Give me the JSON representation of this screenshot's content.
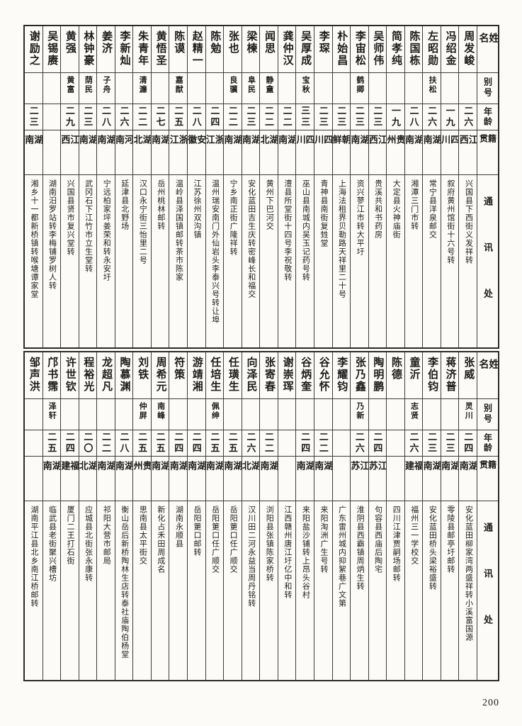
{
  "page_number": "200",
  "headers": {
    "name": "姓名",
    "alias": "别号",
    "age": "年龄",
    "native": "籍贯",
    "address": "通讯处"
  },
  "table_top": {
    "entries": [
      {
        "name": "周发峻",
        "alias": "",
        "age": "二六",
        "native": "江西",
        "address": "兴国县下西街义发祥转"
      },
      {
        "name": "冯绍金",
        "alias": "",
        "age": "一九",
        "native": "四川",
        "address": "叙府黄州馆街十六号转"
      },
      {
        "name": "左昭勋",
        "alias": "扶松",
        "age": "二六",
        "native": "湖南",
        "address": "常宁县洋泉邮交"
      },
      {
        "name": "陈国栋",
        "alias": "",
        "age": "二八",
        "native": "湖南",
        "address": "湘潭三门市转"
      },
      {
        "name": "简孝纯",
        "alias": "",
        "age": "一九",
        "native": "贵州",
        "address": "大定县火神庙街"
      },
      {
        "name": "吴师伟",
        "alias": "",
        "age": "二三",
        "native": "江西",
        "address": "贵溪共和书药房"
      },
      {
        "name": "李宙松",
        "alias": "鹤卿",
        "age": "二三",
        "native": "湖南",
        "address": "资兴蓼江市转大平圩"
      },
      {
        "name": "朴始昌",
        "alias": "",
        "age": "二三",
        "native": "朝鲜",
        "address": "上海法租界贝勒路天祥里二十号"
      },
      {
        "name": "李琛",
        "alias": "",
        "age": "二三",
        "native": "四川",
        "address": "青神县南街复甡堂"
      },
      {
        "name": "吴厚成",
        "alias": "宝秋",
        "age": "三三",
        "native": "四川",
        "address": "巫山县南城内吴玉记药号转"
      },
      {
        "name": "龚仲汉",
        "alias": "",
        "age": "二二",
        "native": "湖南",
        "address": "澧县所堂街十四号李祝敬转"
      },
      {
        "name": "闻思",
        "alias": "静盦",
        "age": "二二",
        "native": "湖北",
        "address": "黄州下巴河交"
      },
      {
        "name": "梁楝",
        "alias": "阜民",
        "age": "二三",
        "native": "湖南",
        "address": "安化蓝田吉生庆转密峰长和福交"
      },
      {
        "name": "张也",
        "alias": "良骥",
        "age": "二二",
        "native": "湖南",
        "address": "宁乡南正街广隆祥转"
      },
      {
        "name": "陈勉",
        "alias": "",
        "age": "二四",
        "native": "浙江",
        "address": "温州瑞安南门外仙岩头李泰兴号转让埠"
      },
      {
        "name": "赵精一",
        "alias": "",
        "age": "二八",
        "native": "安徽",
        "address": "江苏徐州双沟镇"
      },
      {
        "name": "陈谟",
        "alias": "嘉猷",
        "age": "二五",
        "native": "浙江",
        "address": "温岭县泽国镇邮转茶市陈家"
      },
      {
        "name": "黄悟圣",
        "alias": "",
        "age": "二七",
        "native": "湖南",
        "address": "岳州桃林邮转"
      },
      {
        "name": "朱青年",
        "alias": "清濂",
        "age": "二二",
        "native": "湖北",
        "address": "汉口永宁街三怡里二号"
      },
      {
        "name": "李新灿",
        "alias": "",
        "age": "二六",
        "native": "河南",
        "address": "延津县北野场"
      },
      {
        "name": "姜济",
        "alias": "子舟",
        "age": "二八",
        "native": "湖南",
        "address": "宁远柏家坪姜荣和转永安圩"
      },
      {
        "name": "林钟豪",
        "alias": "荫民",
        "age": "二三",
        "native": "湖南",
        "address": "武冈石下江竹市立生堂转"
      },
      {
        "name": "黄强",
        "alias": "黄富",
        "age": "二九",
        "native": "江西",
        "address": "兴国县贤市复兴堂转"
      },
      {
        "name": "吴锡赓",
        "alias": "",
        "age": "",
        "native": "",
        "address": "湖南汨罗站转李梅铺罗树人转"
      },
      {
        "name": "谢励之",
        "alias": "",
        "age": "二三",
        "native": "湖南",
        "address": "湘乡十一都新桥镇转喉塘谭家堂"
      }
    ]
  },
  "table_bottom": {
    "entries": [
      {
        "name": "张威",
        "alias": "灵川",
        "age": "二四",
        "native": "湖南",
        "address": "安化蓝田柳家湾两盛祥转小溪富国源"
      },
      {
        "name": "蒋济普",
        "alias": "",
        "age": "二三",
        "native": "湖南",
        "address": "零陵县邮亭圩邮转"
      },
      {
        "name": "李伯钧",
        "alias": "",
        "age": "二三",
        "native": "湖南",
        "address": "安化蓝田桥头梁裕盛转"
      },
      {
        "name": "童沂",
        "alias": "志贤",
        "age": "二六",
        "native": "福建",
        "address": "福州三一学校交"
      },
      {
        "name": "陈德",
        "alias": "",
        "age": "",
        "native": "",
        "address": "四川江津贾嗣场邮转"
      },
      {
        "name": "陶明鹏",
        "alias": "",
        "age": "二四",
        "native": "江苏",
        "address": "句容县西庙后陶宅"
      },
      {
        "name": "张乃鑫",
        "alias": "乃新",
        "age": "二六",
        "native": "江苏",
        "address": "淮阴县西霸镇周炳生转"
      },
      {
        "name": "李耀钧",
        "alias": "",
        "age": "",
        "native": "",
        "address": "广东雷州城内抑絮巷广文第"
      },
      {
        "name": "谷允怀",
        "alias": "",
        "age": "二二",
        "native": "湖南",
        "address": "来阳淘洲广生号转"
      },
      {
        "name": "谷炳奎",
        "alias": "",
        "age": "二四",
        "native": "湖南",
        "address": "来阳盐沙铺转上昂头谷村"
      },
      {
        "name": "谢崇珲",
        "alias": "",
        "age": "",
        "native": "",
        "address": "江西赣州唐江圩亿中和转"
      },
      {
        "name": "张寄春",
        "alias": "",
        "age": "二二",
        "native": "湖南",
        "address": "浏阳县张镇陈家桥转"
      },
      {
        "name": "向泽民",
        "alias": "",
        "age": "二六",
        "native": "湖北",
        "address": "汉川田二河永益当周丹铭转"
      },
      {
        "name": "任璜生",
        "alias": "",
        "age": "二五",
        "native": "湖南",
        "address": "岳阳筻口任广顺交"
      },
      {
        "name": "任培生",
        "alias": "佩绅",
        "age": "二五",
        "native": "湖南",
        "address": "岳阳筻口任广顺交"
      },
      {
        "name": "游靖湘",
        "alias": "",
        "age": "二四",
        "native": "湖南",
        "address": "岳阳筻口邮转"
      },
      {
        "name": "符策",
        "alias": "",
        "age": "二四",
        "native": "湖南",
        "address": "湖南永顺县"
      },
      {
        "name": "周希元",
        "alias": "南峰",
        "age": "二五",
        "native": "湖南",
        "address": "新化占禾田周成名"
      },
      {
        "name": "刘铁",
        "alias": "仲屏",
        "age": "二五",
        "native": "贵州",
        "address": "思南县太平街交"
      },
      {
        "name": "陶慕渊",
        "alias": "",
        "age": "二八",
        "native": "湖南",
        "address": "衡山岳后新桥陶林生店转泰社庙陶伯杨堂"
      },
      {
        "name": "龙超凡",
        "alias": "",
        "age": "二二",
        "native": "湖南",
        "address": "祁阳大营市邮局"
      },
      {
        "name": "程裕光",
        "alias": "",
        "age": "二〇",
        "native": "湖北",
        "address": "应城县北街张永康转"
      },
      {
        "name": "许世钦",
        "alias": "",
        "age": "二四",
        "native": "福建",
        "address": "厦门二王打石街"
      },
      {
        "name": "邝书霈",
        "alias": "泽轩",
        "age": "二五",
        "native": "湖南",
        "address": "临武县老街聚兴槽坊"
      },
      {
        "name": "邹声洪",
        "alias": "",
        "age": "",
        "native": "",
        "address": "湖南平江县北乡南江桥邮转"
      }
    ]
  }
}
